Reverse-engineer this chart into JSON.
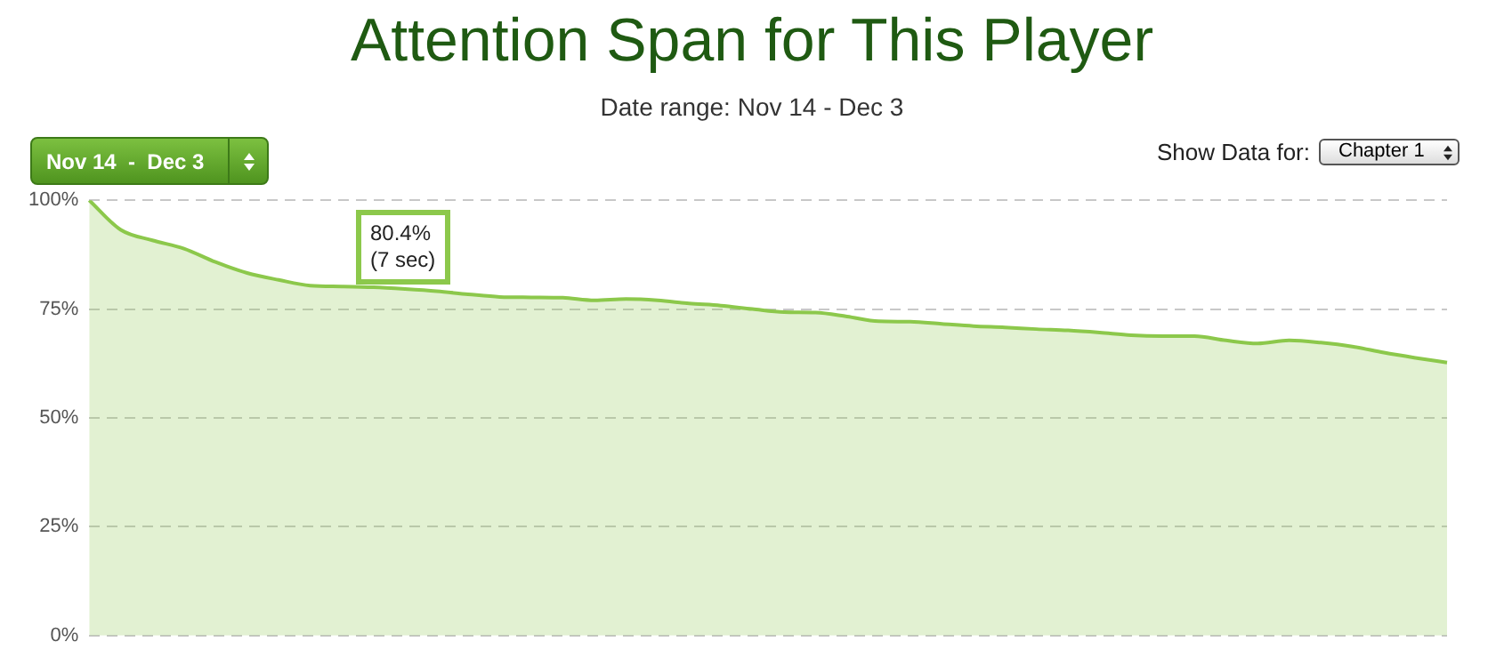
{
  "chart_data": {
    "type": "area",
    "title": "Attention Span for This Player",
    "subtitle": "Date range: Nov 14 - Dec 3",
    "categories": [
      null,
      null,
      null,
      null,
      null,
      null,
      null,
      null,
      null,
      null,
      null,
      null,
      null,
      null,
      null,
      null,
      null,
      null,
      null,
      null,
      null,
      null,
      null,
      null,
      null,
      null,
      null,
      null,
      null,
      null,
      null,
      null,
      null,
      null,
      null,
      null,
      null,
      null,
      null,
      null,
      null,
      null,
      null,
      null
    ],
    "series": [
      {
        "color": "#8cc84b",
        "values": [
          100,
          93.2,
          90.8,
          88.9,
          85.8,
          83.3,
          81.7,
          80.4,
          80.2,
          80.0,
          79.6,
          79.1,
          78.4,
          77.8,
          77.7,
          77.6,
          77.0,
          77.3,
          77.0,
          76.3,
          75.8,
          75.0,
          74.3,
          74.2,
          73.3,
          72.2,
          72.1,
          71.6,
          71.1,
          70.8,
          70.4,
          70.1,
          69.6,
          69.0,
          68.8,
          68.8,
          67.8,
          67.1,
          67.8,
          67.3,
          66.4,
          65.0,
          63.8,
          62.7
        ]
      }
    ],
    "ylim": [
      0,
      100
    ],
    "yticks": [
      {
        "value": 0,
        "label": "0%"
      },
      {
        "value": 25,
        "label": "25%"
      },
      {
        "value": 50,
        "label": "50%"
      },
      {
        "value": 75,
        "label": "75%"
      },
      {
        "value": 100,
        "label": "100%"
      }
    ],
    "grid": "y",
    "legend": false,
    "tick_labels": "y",
    "marker": "none",
    "annotations": [
      "Nov 14  -  Dec 3",
      "Show Data for:",
      "Chapter 1",
      "80.4%\n(7 sec)"
    ]
  }
}
